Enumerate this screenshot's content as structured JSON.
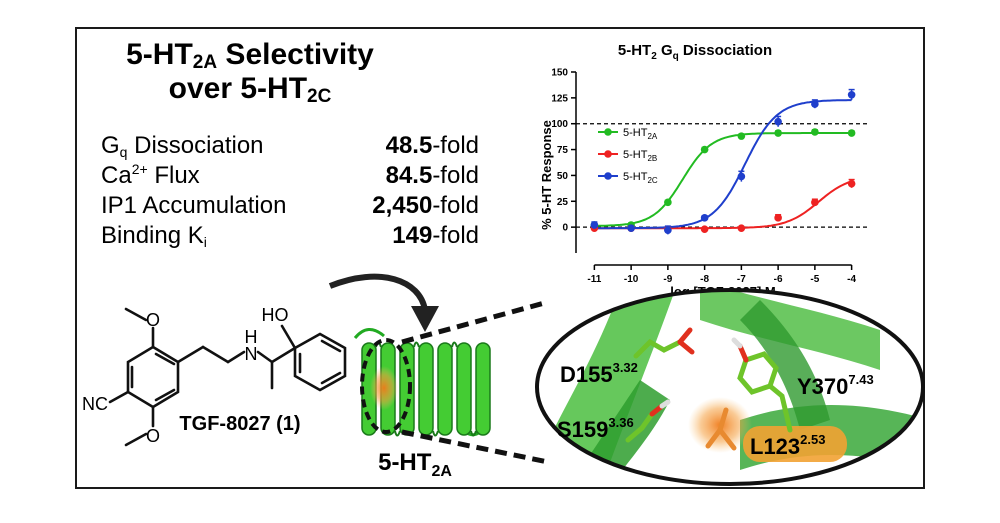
{
  "panel": {
    "title_line1_a": "5-HT",
    "title_line1_sub": "2A",
    "title_line1_b": " Selectivity",
    "title_line2_a": "over 5-HT",
    "title_line2_sub": "2C"
  },
  "selectivity": [
    {
      "label_a": "G",
      "label_sub": "q",
      "label_sup": "",
      "label_b": " Dissociation",
      "value": "48.5",
      "suffix": "-fold"
    },
    {
      "label_a": "Ca",
      "label_sub": "",
      "label_sup": "2+",
      "label_b": " Flux",
      "value": "84.5",
      "suffix": "-fold"
    },
    {
      "label_a": "IP1 Accumulation",
      "label_sub": "",
      "label_sup": "",
      "label_b": "",
      "value": "2,450",
      "suffix": "-fold"
    },
    {
      "label_a": "Binding K",
      "label_sub": "i",
      "label_sup": "",
      "label_b": "",
      "value": "149",
      "suffix": "-fold"
    }
  ],
  "molecule": {
    "label": "TGF-8027 (1)",
    "atom_o_top": "O",
    "atom_o_bottom": "O",
    "atom_ho": "HO",
    "atom_h": "H",
    "atom_n": "N",
    "atom_nc": "NC"
  },
  "receptor": {
    "label_a": "5-HT",
    "label_sub": "2A"
  },
  "residues": [
    {
      "name": "D155",
      "sup": "3.32"
    },
    {
      "name": "S159",
      "sup": "3.36"
    },
    {
      "name": "Y370",
      "sup": "7.43"
    },
    {
      "name": "L123",
      "sup": "2.53"
    }
  ],
  "colors": {
    "green": "#22bb22",
    "red": "#ee2222",
    "blue": "#1f3fcc",
    "helix": "#3cb53c",
    "highlight": "#f2a233"
  },
  "chart_data": {
    "type": "line",
    "title_a": "5-HT",
    "title_sub1": "2",
    "title_b": " G",
    "title_sub2": "q",
    "title_c": " Dissociation",
    "xlabel": "log [TGF-8027] M",
    "ylabel": "% 5-HT Response",
    "xlim": [
      -11.5,
      -3.5
    ],
    "ylim": [
      -25,
      150
    ],
    "xticks": [
      -11,
      -10,
      -9,
      -8,
      -7,
      -6,
      -5,
      -4
    ],
    "yticks": [
      0,
      25,
      50,
      75,
      100,
      125,
      150
    ],
    "ytick_labels": [
      "0",
      "25",
      "50",
      "75",
      "100",
      "125",
      "150"
    ],
    "xtick_labels": [
      "-11",
      "-10",
      "-9",
      "-8",
      "-7",
      "-6",
      "-5",
      "-4"
    ],
    "reference_lines": [
      0,
      100
    ],
    "legend_position": "center-left",
    "series": [
      {
        "name_a": "5-HT",
        "name_sub": "2A",
        "color": "#22bb22",
        "x": [
          -11,
          -10,
          -9,
          -8,
          -7,
          -6,
          -5,
          -4
        ],
        "y": [
          2,
          2,
          24,
          75,
          88,
          91,
          92,
          91
        ],
        "err": [
          2,
          2,
          2,
          2,
          2,
          2,
          2,
          2
        ],
        "fit": {
          "bottom": 1,
          "top": 91,
          "logec50": -8.6,
          "hill": 1.1
        }
      },
      {
        "name_a": "5-HT",
        "name_sub": "2B",
        "color": "#ee2222",
        "x": [
          -11,
          -10,
          -9,
          -8,
          -7,
          -6,
          -5,
          -4
        ],
        "y": [
          -1,
          -1,
          -2,
          -2,
          -1,
          9,
          24,
          42
        ],
        "err": [
          1,
          1,
          1,
          1,
          1,
          3,
          3,
          4
        ],
        "fit": {
          "bottom": -1,
          "top": 50,
          "logec50": -4.9,
          "hill": 1.0
        }
      },
      {
        "name_a": "5-HT",
        "name_sub": "2C",
        "color": "#1f3fcc",
        "x": [
          -11,
          -10,
          -9,
          -8,
          -7,
          -6,
          -5,
          -4
        ],
        "y": [
          2,
          -1,
          -3,
          9,
          49,
          102,
          119,
          128
        ],
        "err": [
          3,
          2,
          4,
          2,
          5,
          5,
          4,
          5
        ],
        "fit": {
          "bottom": -1,
          "top": 123,
          "logec50": -6.9,
          "hill": 1.0
        }
      }
    ]
  }
}
